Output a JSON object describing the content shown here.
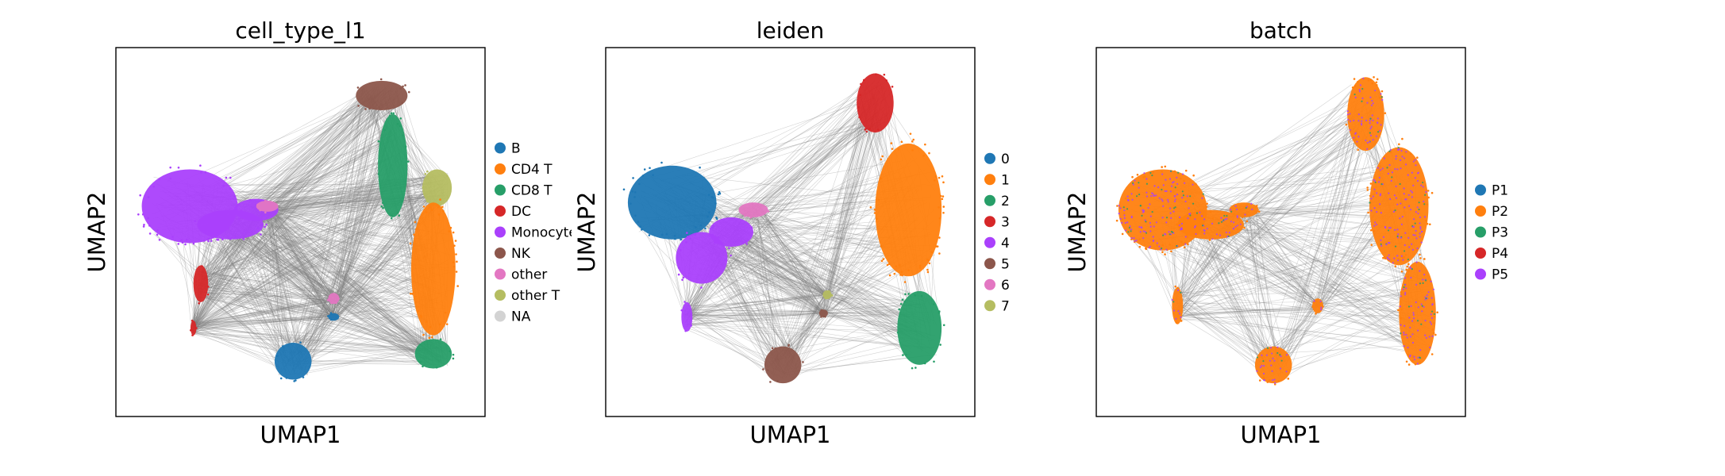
{
  "chart_data": [
    {
      "type": "scatter",
      "title": "cell_type_l1",
      "xlabel": "UMAP1",
      "ylabel": "UMAP2",
      "grid": false,
      "legend_position": "right",
      "xlim": [
        0,
        100
      ],
      "ylim": [
        0,
        100
      ],
      "edges": true,
      "legend": [
        {
          "name": "B",
          "color": "#1f77b4"
        },
        {
          "name": "CD4 T",
          "color": "#ff7f0e"
        },
        {
          "name": "CD8 T",
          "color": "#279e68"
        },
        {
          "name": "DC",
          "color": "#d62728"
        },
        {
          "name": "Monocytes",
          "color": "#aa40fc"
        },
        {
          "name": "NK",
          "color": "#8c564b"
        },
        {
          "name": "other",
          "color": "#e377c2"
        },
        {
          "name": "other T",
          "color": "#b5bd61"
        },
        {
          "name": "NA",
          "color": "#d3d3d3"
        }
      ],
      "clusters": [
        {
          "label": "Monocytes",
          "color": "#aa40fc",
          "x": 20,
          "y": 57,
          "rx": 13,
          "ry": 10
        },
        {
          "label": "Monocytes",
          "color": "#aa40fc",
          "x": 31,
          "y": 52,
          "rx": 9,
          "ry": 4
        },
        {
          "label": "Monocytes",
          "color": "#aa40fc",
          "x": 38,
          "y": 56,
          "rx": 6,
          "ry": 3
        },
        {
          "label": "other",
          "color": "#e377c2",
          "x": 41,
          "y": 57,
          "rx": 3,
          "ry": 1.5
        },
        {
          "label": "DC",
          "color": "#d62728",
          "x": 23,
          "y": 36,
          "rx": 2,
          "ry": 5
        },
        {
          "label": "DC",
          "color": "#d62728",
          "x": 21,
          "y": 24,
          "rx": 0.8,
          "ry": 2
        },
        {
          "label": "B",
          "color": "#1f77b4",
          "x": 48,
          "y": 15,
          "rx": 5,
          "ry": 5
        },
        {
          "label": "other",
          "color": "#e377c2",
          "x": 59,
          "y": 32,
          "rx": 1.5,
          "ry": 1.5
        },
        {
          "label": "B",
          "color": "#1f77b4",
          "x": 59,
          "y": 27,
          "rx": 1.5,
          "ry": 1
        },
        {
          "label": "NK",
          "color": "#8c564b",
          "x": 72,
          "y": 87,
          "rx": 7,
          "ry": 4
        },
        {
          "label": "CD8 T",
          "color": "#279e68",
          "x": 75,
          "y": 68,
          "rx": 4,
          "ry": 14
        },
        {
          "label": "other T",
          "color": "#b5bd61",
          "x": 87,
          "y": 62,
          "rx": 4,
          "ry": 5
        },
        {
          "label": "CD4 T",
          "color": "#ff7f0e",
          "x": 86,
          "y": 40,
          "rx": 6,
          "ry": 18
        },
        {
          "label": "CD8 T",
          "color": "#279e68",
          "x": 86,
          "y": 17,
          "rx": 5,
          "ry": 4
        }
      ]
    },
    {
      "type": "scatter",
      "title": "leiden",
      "xlabel": "UMAP1",
      "ylabel": "UMAP2",
      "grid": false,
      "legend_position": "right",
      "xlim": [
        0,
        100
      ],
      "ylim": [
        0,
        100
      ],
      "edges": true,
      "legend": [
        {
          "name": "0",
          "color": "#1f77b4"
        },
        {
          "name": "1",
          "color": "#ff7f0e"
        },
        {
          "name": "2",
          "color": "#279e68"
        },
        {
          "name": "3",
          "color": "#d62728"
        },
        {
          "name": "4",
          "color": "#aa40fc"
        },
        {
          "name": "5",
          "color": "#8c564b"
        },
        {
          "name": "6",
          "color": "#e377c2"
        },
        {
          "name": "7",
          "color": "#b5bd61"
        }
      ],
      "clusters": [
        {
          "label": "0",
          "color": "#1f77b4",
          "x": 18,
          "y": 58,
          "rx": 12,
          "ry": 10
        },
        {
          "label": "4",
          "color": "#aa40fc",
          "x": 26,
          "y": 43,
          "rx": 7,
          "ry": 7
        },
        {
          "label": "4",
          "color": "#aa40fc",
          "x": 34,
          "y": 50,
          "rx": 6,
          "ry": 4
        },
        {
          "label": "6",
          "color": "#e377c2",
          "x": 40,
          "y": 56,
          "rx": 4,
          "ry": 2
        },
        {
          "label": "4",
          "color": "#aa40fc",
          "x": 22,
          "y": 27,
          "rx": 1.5,
          "ry": 4
        },
        {
          "label": "5",
          "color": "#8c564b",
          "x": 48,
          "y": 14,
          "rx": 5,
          "ry": 5
        },
        {
          "label": "7",
          "color": "#b5bd61",
          "x": 60,
          "y": 33,
          "rx": 1.2,
          "ry": 1.2
        },
        {
          "label": "5",
          "color": "#8c564b",
          "x": 59,
          "y": 28,
          "rx": 1.2,
          "ry": 1
        },
        {
          "label": "3",
          "color": "#d62728",
          "x": 73,
          "y": 85,
          "rx": 5,
          "ry": 8
        },
        {
          "label": "1",
          "color": "#ff7f0e",
          "x": 82,
          "y": 56,
          "rx": 9,
          "ry": 18
        },
        {
          "label": "2",
          "color": "#279e68",
          "x": 85,
          "y": 24,
          "rx": 6,
          "ry": 10
        }
      ]
    },
    {
      "type": "scatter",
      "title": "batch",
      "xlabel": "UMAP1",
      "ylabel": "UMAP2",
      "grid": false,
      "legend_position": "right",
      "xlim": [
        0,
        100
      ],
      "ylim": [
        0,
        100
      ],
      "edges": true,
      "legend": [
        {
          "name": "P1",
          "color": "#1f77b4"
        },
        {
          "name": "P2",
          "color": "#ff7f0e"
        },
        {
          "name": "P3",
          "color": "#279e68"
        },
        {
          "name": "P4",
          "color": "#d62728"
        },
        {
          "name": "P5",
          "color": "#aa40fc"
        }
      ],
      "clusters": [
        {
          "label": "P2",
          "color": "#ff7f0e",
          "x": 18,
          "y": 56,
          "rx": 12,
          "ry": 11
        },
        {
          "label": "P2",
          "color": "#ff7f0e",
          "x": 31,
          "y": 52,
          "rx": 9,
          "ry": 4
        },
        {
          "label": "P2",
          "color": "#ff7f0e",
          "x": 40,
          "y": 56,
          "rx": 4,
          "ry": 2
        },
        {
          "label": "P2",
          "color": "#ff7f0e",
          "x": 22,
          "y": 30,
          "rx": 1.5,
          "ry": 5
        },
        {
          "label": "P2",
          "color": "#ff7f0e",
          "x": 48,
          "y": 14,
          "rx": 5,
          "ry": 5
        },
        {
          "label": "P2",
          "color": "#ff7f0e",
          "x": 60,
          "y": 30,
          "rx": 1.5,
          "ry": 2
        },
        {
          "label": "P2",
          "color": "#ff7f0e",
          "x": 73,
          "y": 82,
          "rx": 5,
          "ry": 10
        },
        {
          "label": "P2",
          "color": "#ff7f0e",
          "x": 82,
          "y": 57,
          "rx": 8,
          "ry": 16
        },
        {
          "label": "P2",
          "color": "#ff7f0e",
          "x": 87,
          "y": 28,
          "rx": 5,
          "ry": 14
        }
      ]
    }
  ]
}
